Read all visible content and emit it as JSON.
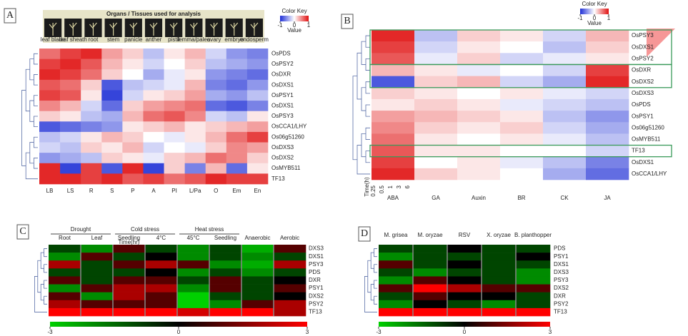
{
  "chart_data": [
    {
      "type": "heatmap",
      "label": "A",
      "header": "Organs / Tissues used for analysis",
      "tissues": [
        "leaf blade",
        "leaf sheath",
        "root",
        "stem",
        "panicle",
        "anther",
        "pistil",
        "lemma/palea",
        "ovary",
        "embryo",
        "endosperm"
      ],
      "key_title": "Color Key",
      "key_label": "Value",
      "zlim": [
        -1,
        1
      ],
      "zticks": [
        -1,
        0,
        1
      ],
      "colormap": [
        "#1f2fd6",
        "#ffffff",
        "#e01010"
      ],
      "highlight_row": 12,
      "highlight_color": "#e01010",
      "columns": [
        "LB",
        "LS",
        "R",
        "S",
        "P",
        "A",
        "PI",
        "L/Pa",
        "O",
        "Em",
        "En"
      ],
      "rows": [
        "OsPDS",
        "OsPSY2",
        "OsDXR",
        "OsDXS1",
        "OsPSY1",
        "OsDXS1",
        "OsPSY3",
        "OsCCA1/LHY",
        "Os06g51260",
        "OsDXS3",
        "OsDXS2",
        "OsMYB511",
        "TF13"
      ],
      "values": [
        [
          0.6,
          0.8,
          0.9,
          0.4,
          0.2,
          -0.3,
          0.1,
          0.3,
          -0.2,
          -0.5,
          -0.6
        ],
        [
          0.8,
          0.9,
          0.7,
          0.3,
          0.1,
          -0.2,
          0,
          0.2,
          -0.3,
          -0.4,
          -0.5
        ],
        [
          0.9,
          0.8,
          0.6,
          0.2,
          0,
          -0.4,
          -0.1,
          0.1,
          -0.5,
          -0.6,
          -0.7
        ],
        [
          0.7,
          0.6,
          0.2,
          -0.8,
          -0.3,
          -0.2,
          -0.1,
          0.3,
          -0.6,
          -0.7,
          -0.5
        ],
        [
          0.8,
          0.7,
          0.1,
          -0.9,
          -0.2,
          0.1,
          0.2,
          0.4,
          -0.4,
          -0.5,
          -0.3
        ],
        [
          0.5,
          0.3,
          -0.2,
          -0.7,
          0.2,
          0.4,
          0.5,
          0.6,
          -0.7,
          -0.8,
          -0.6
        ],
        [
          0.2,
          0.1,
          -0.3,
          -0.4,
          0.3,
          0.6,
          0.7,
          0.5,
          -0.2,
          -0.3,
          0.1
        ],
        [
          -0.8,
          -0.7,
          -0.6,
          -0.5,
          0.1,
          0.2,
          0.3,
          0.1,
          0.2,
          0.3,
          0.4
        ],
        [
          -0.3,
          -0.2,
          0.1,
          0.3,
          0.2,
          0,
          -0.1,
          0.1,
          0.3,
          0.6,
          0.8
        ],
        [
          -0.2,
          -0.3,
          0.2,
          0.1,
          0.3,
          -0.2,
          0,
          -0.1,
          0.2,
          0.5,
          0.4
        ],
        [
          -0.5,
          -0.4,
          -0.3,
          0.2,
          0.1,
          -0.1,
          0.2,
          0.3,
          0.6,
          0.5,
          0.2
        ],
        [
          0.9,
          -0.9,
          0.8,
          -0.8,
          0.9,
          -0.9,
          0.2,
          -0.6,
          0.3,
          -0.7,
          0.1
        ],
        [
          0.9,
          0.9,
          0.8,
          0.9,
          0.7,
          0.8,
          0.6,
          0.7,
          0.9,
          0.8,
          0.8
        ]
      ]
    },
    {
      "type": "heatmap",
      "label": "B",
      "key_title": "Color Key",
      "key_label": "Value",
      "zlim": [
        -1,
        1
      ],
      "zticks": [
        -1,
        0,
        1
      ],
      "colormap": [
        "#1f2fd6",
        "#ffffff",
        "#e01010"
      ],
      "highlight_row": 10,
      "highlight_color": "#e01010",
      "time_label": "Time(h)",
      "times": [
        "0.25",
        "0.5",
        "1",
        "3",
        "6"
      ],
      "columns": [
        "ABA",
        "GA",
        "Auxin",
        "BR",
        "CK",
        "JA"
      ],
      "rows": [
        "OsPSY3",
        "OsDXS1",
        "OsPSY2",
        "OsDXR",
        "OsDXS2",
        "OsDXS3",
        "OsPDS",
        "OsPSY1",
        "Os06g51260",
        "OsMYB511",
        "TF13",
        "OsDXS1",
        "OsCCA1/LHY"
      ],
      "values": [
        [
          0.9,
          -0.3,
          0.2,
          0.1,
          -0.2,
          0.3
        ],
        [
          0.8,
          -0.2,
          0.1,
          0,
          -0.3,
          0.2
        ],
        [
          0.7,
          -0.1,
          0.2,
          -0.2,
          -0.1,
          0.1
        ],
        [
          0.3,
          0.1,
          -0.1,
          0,
          -0.2,
          0.8
        ],
        [
          -0.8,
          0.2,
          0.3,
          -0.2,
          -0.4,
          0.9
        ],
        [
          0.2,
          0.1,
          0,
          0.1,
          -0.1,
          -0.2
        ],
        [
          0.1,
          0.2,
          0.1,
          -0.1,
          -0.2,
          -0.3
        ],
        [
          0.4,
          0.3,
          0.2,
          0.1,
          -0.3,
          -0.5
        ],
        [
          0.5,
          0.2,
          0.1,
          0.2,
          -0.2,
          -0.4
        ],
        [
          0.6,
          0.1,
          0,
          0.1,
          -0.1,
          -0.3
        ],
        [
          0.7,
          0.1,
          0.1,
          0,
          0,
          -0.2
        ],
        [
          0.8,
          0,
          0.1,
          -0.1,
          -0.3,
          -0.6
        ],
        [
          0.9,
          0.2,
          0.1,
          0,
          -0.4,
          -0.7
        ]
      ]
    },
    {
      "type": "heatmap",
      "label": "C",
      "zlim": [
        -3,
        3
      ],
      "zticks": [
        -3,
        0,
        3
      ],
      "colormap": [
        "#00d000",
        "#000000",
        "#ff0000"
      ],
      "highlight_row": 8,
      "highlight_color": "#e01010",
      "groups": [
        "Drought",
        "Cold stress",
        "Heat stress"
      ],
      "time_label": "Time(hr)",
      "columns": [
        "Root",
        "Leaf",
        "Seedling",
        "4°C",
        "45°C",
        "Seedling",
        "Anaerobic",
        "Aerobic"
      ],
      "rows": [
        "DXS3",
        "DXS1",
        "PSY3",
        "PDS",
        "DXR",
        "PSY1",
        "DXS2",
        "PSY2",
        "TF13"
      ],
      "values": [
        [
          -1,
          -2,
          1,
          -1,
          -2,
          -1,
          -2.5,
          1
        ],
        [
          -2,
          1,
          -1,
          0,
          -2,
          -1,
          -2,
          -1
        ],
        [
          2,
          -1,
          1,
          2,
          1,
          -2,
          -2.5,
          2
        ],
        [
          -1,
          -1,
          -1,
          0,
          -2,
          -1,
          -2,
          -1
        ],
        [
          1,
          -1,
          1,
          1,
          -1,
          1,
          -1,
          0
        ],
        [
          -2,
          1,
          2,
          2,
          -2,
          1,
          -1,
          1
        ],
        [
          1,
          -2,
          2,
          1,
          -3,
          -1,
          -1,
          0
        ],
        [
          2,
          1,
          1,
          1,
          -3,
          -2,
          1,
          2
        ],
        [
          3,
          3,
          3,
          3,
          2.5,
          3,
          3,
          2
        ]
      ]
    },
    {
      "type": "heatmap",
      "label": "D",
      "zlim": [
        -3,
        3
      ],
      "zticks": [
        -3,
        0,
        3
      ],
      "colormap": [
        "#00d000",
        "#000000",
        "#ff0000"
      ],
      "highlight_row": 8,
      "highlight_color": "#e01010",
      "columns": [
        "M. grisea",
        "M. oryzae",
        "RSV",
        "X. oryzae",
        "B. planthopper"
      ],
      "rows": [
        "PDS",
        "PSY1",
        "DXS1",
        "DXS3",
        "PSY3",
        "DXS2",
        "DXR",
        "PSY2",
        "TF13"
      ],
      "values": [
        [
          -1,
          -1,
          0,
          -1,
          -1
        ],
        [
          -2,
          -1,
          -1,
          -1,
          0
        ],
        [
          1,
          -1,
          0,
          -1,
          -1
        ],
        [
          -1,
          -2,
          -1,
          -1,
          -2
        ],
        [
          -2,
          1,
          0,
          -1,
          -2
        ],
        [
          1,
          3,
          2,
          1,
          1
        ],
        [
          -1,
          1,
          0,
          0,
          -1
        ],
        [
          -2,
          0,
          -1,
          -2,
          -1
        ],
        [
          3,
          3,
          3,
          3,
          3
        ]
      ]
    }
  ]
}
